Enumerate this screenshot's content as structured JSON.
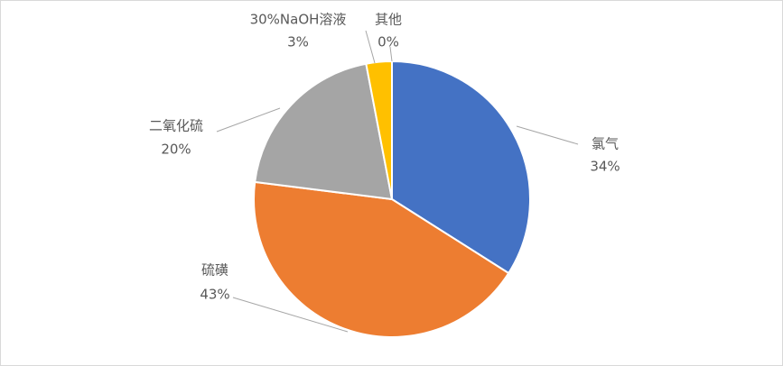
{
  "chart_data": {
    "type": "pie",
    "categories": [
      "氯气",
      "硫磺",
      "二氧化硫",
      "30%NaOH溶液",
      "其他"
    ],
    "values": [
      34,
      43,
      20,
      3,
      0
    ],
    "value_labels": [
      "34%",
      "43%",
      "20%",
      "3%",
      "0%"
    ],
    "colors": [
      "#4472c4",
      "#ed7d31",
      "#a5a5a5",
      "#ffc000",
      "#5b9bd5"
    ]
  }
}
